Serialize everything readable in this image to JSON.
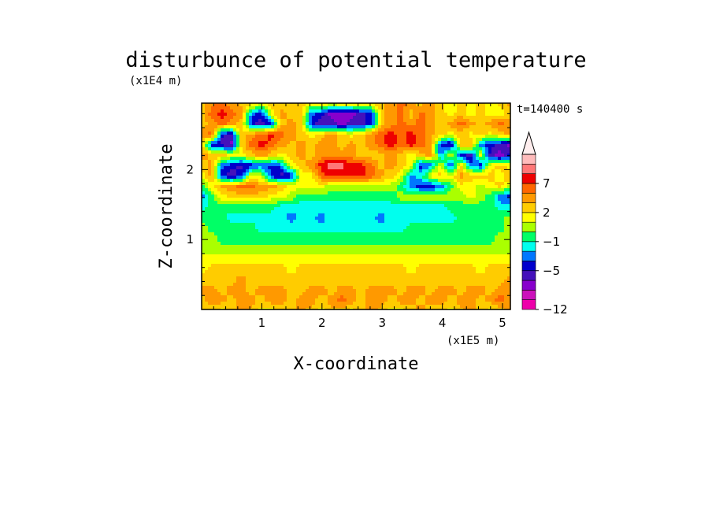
{
  "chart_data": {
    "type": "heatmap",
    "title": "disturbunce of potential temperature",
    "xlabel": "X-coordinate",
    "ylabel": "Z-coordinate",
    "x_scale_label": "(x1E5 m)",
    "y_scale_label": "(x1E4 m)",
    "time_label": "t=140400 s",
    "xlim": [
      0,
      5.13
    ],
    "ylim": [
      0,
      2.95
    ],
    "x_ticks": [
      {
        "value": 1,
        "label": "1"
      },
      {
        "value": 2,
        "label": "2"
      },
      {
        "value": 3,
        "label": "3"
      },
      {
        "value": 4,
        "label": "4"
      },
      {
        "value": 5,
        "label": "5"
      }
    ],
    "y_ticks": [
      {
        "value": 1,
        "label": "1"
      },
      {
        "value": 2,
        "label": "2"
      }
    ],
    "colorbar": {
      "levels": [
        {
          "color": "#ee00aa"
        },
        {
          "color": "#cc11bb"
        },
        {
          "color": "#8800cc"
        },
        {
          "color": "#4411bb"
        },
        {
          "color": "#0000cc"
        },
        {
          "color": "#0077ff"
        },
        {
          "color": "#00ffee"
        },
        {
          "color": "#00ff66"
        },
        {
          "color": "#aaff00"
        },
        {
          "color": "#ffff00"
        },
        {
          "color": "#ffcc00"
        },
        {
          "color": "#ff9900"
        },
        {
          "color": "#ff6600"
        },
        {
          "color": "#ee0000"
        },
        {
          "color": "#ff7777"
        },
        {
          "color": "#ffbbbb"
        }
      ],
      "top_arrow_color": "#ffeeee",
      "labels": [
        {
          "label": "7",
          "index": 13
        },
        {
          "label": "2",
          "index": 10
        },
        {
          "label": "−1",
          "index": 7
        },
        {
          "label": "−5",
          "index": 4
        },
        {
          "label": "−12",
          "index": 0
        }
      ]
    },
    "field": [
      [
        10,
        10,
        9,
        10,
        11,
        10,
        9,
        9,
        10,
        10,
        11,
        10,
        9,
        10,
        10,
        9,
        10,
        11,
        10,
        9,
        9,
        10,
        11,
        10,
        10,
        9,
        10,
        11,
        10,
        9,
        10,
        11
      ],
      [
        10,
        11,
        11,
        10,
        11,
        11,
        10,
        11,
        11,
        10,
        11,
        11,
        10,
        11,
        12,
        11,
        10,
        11,
        11,
        10,
        11,
        11,
        10,
        11,
        11,
        10,
        11,
        11,
        10,
        11,
        12,
        11
      ],
      [
        11,
        11,
        10,
        11,
        11,
        10,
        11,
        11,
        11,
        10,
        10,
        11,
        11,
        10,
        11,
        11,
        10,
        11,
        11,
        11,
        10,
        11,
        11,
        10,
        11,
        11,
        10,
        11,
        11,
        10,
        11,
        11
      ],
      [
        10,
        10,
        10,
        10,
        11,
        10,
        10,
        10,
        10,
        10,
        10,
        10,
        10,
        10,
        10,
        10,
        10,
        10,
        10,
        10,
        10,
        10,
        10,
        10,
        10,
        10,
        10,
        10,
        10,
        10,
        10,
        11
      ],
      [
        9,
        10,
        10,
        10,
        10,
        10,
        10,
        10,
        10,
        9,
        10,
        10,
        10,
        10,
        10,
        10,
        10,
        10,
        10,
        10,
        10,
        9,
        10,
        10,
        10,
        10,
        10,
        10,
        9,
        10,
        10,
        10
      ],
      [
        9,
        9,
        9,
        9,
        9,
        9,
        9,
        9,
        9,
        9,
        9,
        9,
        9,
        9,
        9,
        9,
        9,
        9,
        9,
        9,
        9,
        9,
        9,
        9,
        9,
        9,
        9,
        9,
        9,
        9,
        9,
        9
      ],
      [
        8,
        8,
        8,
        8,
        8,
        8,
        8,
        8,
        8,
        8,
        8,
        8,
        8,
        8,
        8,
        8,
        8,
        8,
        8,
        8,
        8,
        8,
        8,
        8,
        8,
        8,
        8,
        8,
        8,
        8,
        8,
        8
      ],
      [
        8,
        8,
        7,
        7,
        7,
        7,
        7,
        7,
        7,
        7,
        7,
        7,
        7,
        7,
        7,
        7,
        7,
        7,
        7,
        7,
        7,
        7,
        7,
        7,
        7,
        7,
        7,
        7,
        7,
        7,
        8,
        8
      ],
      [
        8,
        7,
        7,
        7,
        7,
        7,
        6,
        6,
        6,
        6,
        6,
        6,
        6,
        6,
        6,
        6,
        6,
        6,
        6,
        6,
        6,
        7,
        7,
        7,
        7,
        7,
        7,
        7,
        7,
        7,
        7,
        8
      ],
      [
        7,
        7,
        7,
        6,
        6,
        6,
        6,
        6,
        6,
        5,
        6,
        6,
        5,
        6,
        6,
        6,
        6,
        6,
        5,
        6,
        6,
        6,
        6,
        6,
        6,
        6,
        7,
        7,
        7,
        7,
        7,
        8
      ],
      [
        6,
        7,
        7,
        7,
        7,
        7,
        7,
        7,
        6,
        6,
        6,
        6,
        6,
        6,
        6,
        6,
        6,
        6,
        6,
        6,
        6,
        6,
        6,
        6,
        6,
        7,
        7,
        7,
        7,
        7,
        6,
        6
      ],
      [
        5,
        7,
        9,
        10,
        10,
        10,
        10,
        9,
        9,
        8,
        7,
        7,
        7,
        7,
        7,
        7,
        7,
        7,
        7,
        7,
        8,
        8,
        8,
        8,
        8,
        8,
        8,
        9,
        8,
        7,
        5,
        4
      ],
      [
        7,
        9,
        11,
        11,
        12,
        12,
        11,
        11,
        10,
        9,
        9,
        9,
        9,
        8,
        8,
        8,
        8,
        8,
        8,
        8,
        7,
        5,
        4,
        4,
        5,
        7,
        9,
        9,
        8,
        9,
        10,
        8
      ],
      [
        9,
        11,
        4,
        3,
        4,
        9,
        8,
        4,
        3,
        4,
        9,
        9,
        12,
        13,
        13,
        13,
        13,
        12,
        11,
        10,
        9,
        5,
        6,
        9,
        10,
        9,
        11,
        10,
        10,
        10,
        9,
        11
      ],
      [
        10,
        11,
        5,
        4,
        3,
        4,
        5,
        4,
        5,
        9,
        10,
        11,
        13,
        14,
        14,
        13,
        13,
        12,
        10,
        11,
        10,
        9,
        4,
        5,
        9,
        4,
        10,
        5,
        4,
        9,
        10,
        9
      ],
      [
        11,
        10,
        10,
        9,
        9,
        10,
        11,
        10,
        9,
        10,
        11,
        10,
        11,
        11,
        11,
        11,
        10,
        10,
        10,
        11,
        10,
        9,
        10,
        11,
        5,
        9,
        4,
        3,
        9,
        3,
        2,
        4
      ],
      [
        10,
        4,
        3,
        2,
        10,
        12,
        13,
        12,
        11,
        10,
        11,
        10,
        11,
        11,
        10,
        11,
        10,
        11,
        12,
        13,
        12,
        13,
        12,
        11,
        4,
        3,
        10,
        11,
        5,
        4,
        3,
        2
      ],
      [
        11,
        12,
        4,
        3,
        10,
        11,
        12,
        13,
        12,
        11,
        10,
        9,
        10,
        11,
        10,
        9,
        10,
        11,
        12,
        13,
        12,
        13,
        12,
        11,
        10,
        9,
        10,
        9,
        10,
        9,
        10,
        11
      ],
      [
        10,
        11,
        12,
        11,
        10,
        4,
        3,
        4,
        10,
        11,
        10,
        4,
        3,
        3,
        2,
        3,
        3,
        4,
        10,
        11,
        12,
        11,
        12,
        11,
        10,
        11,
        12,
        11,
        10,
        11,
        12,
        11
      ],
      [
        10,
        12,
        13,
        12,
        11,
        5,
        4,
        9,
        11,
        10,
        10,
        5,
        4,
        2,
        2,
        2,
        3,
        4,
        10,
        11,
        12,
        10,
        12,
        11,
        10,
        9,
        10,
        9,
        10,
        9,
        9,
        10
      ],
      [
        10,
        11,
        12,
        11,
        10,
        10,
        9,
        10,
        10,
        10,
        10,
        9,
        10,
        9,
        10,
        10,
        10,
        10,
        10,
        11,
        12,
        11,
        10,
        11,
        10,
        9,
        10,
        9,
        10,
        9,
        10,
        11
      ]
    ]
  }
}
